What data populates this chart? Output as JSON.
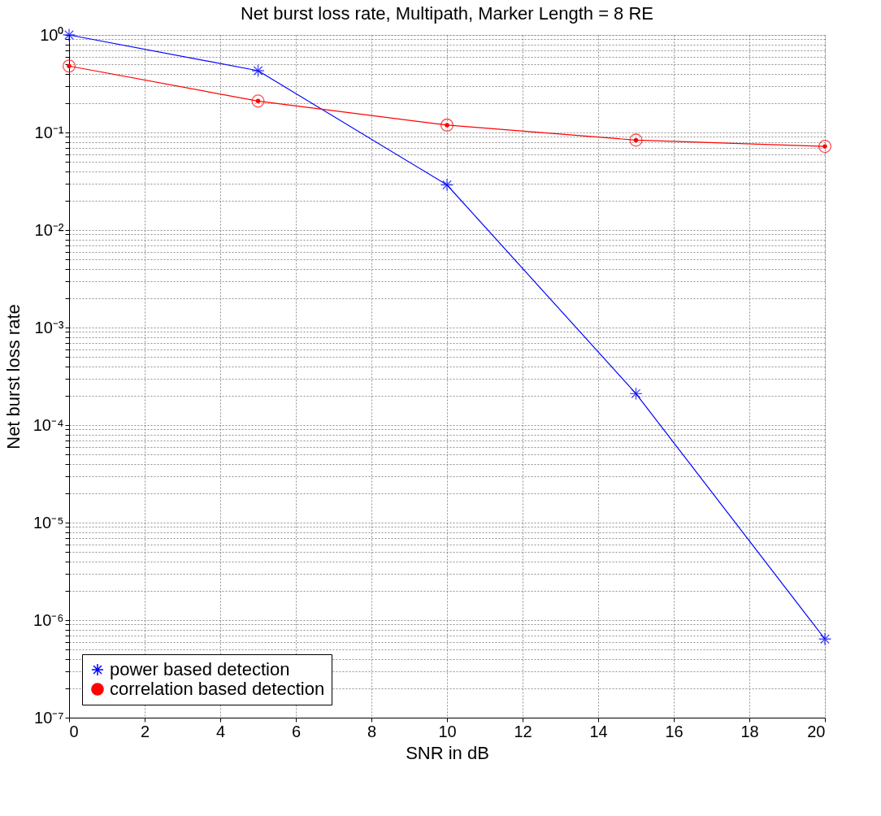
{
  "chart_data": {
    "type": "line",
    "title": "Net burst loss rate, Multipath, Marker Length = 8 RE",
    "xlabel": "SNR in dB",
    "ylabel": "Net burst loss rate",
    "x": [
      0,
      5,
      10,
      15,
      20
    ],
    "series": [
      {
        "name": "power based detection",
        "color": "#0000ff",
        "marker": "cross",
        "values": [
          1,
          0.43,
          0.029,
          0.00021,
          6.4e-07
        ]
      },
      {
        "name": "correlation based detection",
        "color": "#ff0000",
        "marker": "circle",
        "values": [
          0.48,
          0.21,
          0.119,
          0.0835,
          0.072
        ]
      }
    ],
    "log": "y",
    "xlim": [
      0,
      20
    ],
    "xticks": [
      0,
      2,
      4,
      6,
      8,
      10,
      12,
      14,
      16,
      18,
      20
    ],
    "ylim": [
      1e-07,
      1
    ],
    "yticks": [
      {
        "value": 1e-07,
        "label": "10⁻⁷"
      },
      {
        "value": 1e-06,
        "label": "10⁻⁶"
      },
      {
        "value": 1e-05,
        "label": "10⁻⁵"
      },
      {
        "value": 0.0001,
        "label": "10⁻⁴"
      },
      {
        "value": 0.001,
        "label": "10⁻³"
      },
      {
        "value": 0.01,
        "label": "10⁻²"
      },
      {
        "value": 0.1,
        "label": "10⁻¹"
      },
      {
        "value": 1,
        "label": "10⁰"
      }
    ],
    "grid": true,
    "legend": "bottom left",
    "line_style": "solid"
  }
}
